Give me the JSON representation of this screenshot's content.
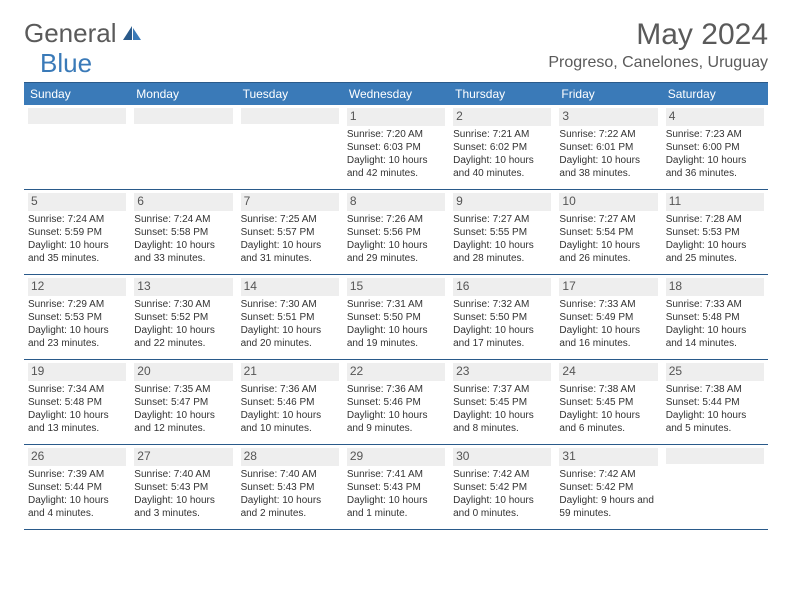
{
  "logo": {
    "part1": "General",
    "part2": "Blue"
  },
  "title": "May 2024",
  "location": "Progreso, Canelones, Uruguay",
  "colors": {
    "header_bg": "#3a7ab8",
    "border": "#2a5a8a",
    "daynum_bg": "#eeeeee",
    "text": "#333333",
    "logo_gray": "#5a5a5a",
    "logo_blue": "#3a7ab8"
  },
  "days_of_week": [
    "Sunday",
    "Monday",
    "Tuesday",
    "Wednesday",
    "Thursday",
    "Friday",
    "Saturday"
  ],
  "weeks": [
    [
      {
        "num": "",
        "sunrise": "",
        "sunset": "",
        "daylight": ""
      },
      {
        "num": "",
        "sunrise": "",
        "sunset": "",
        "daylight": ""
      },
      {
        "num": "",
        "sunrise": "",
        "sunset": "",
        "daylight": ""
      },
      {
        "num": "1",
        "sunrise": "Sunrise: 7:20 AM",
        "sunset": "Sunset: 6:03 PM",
        "daylight": "Daylight: 10 hours and 42 minutes."
      },
      {
        "num": "2",
        "sunrise": "Sunrise: 7:21 AM",
        "sunset": "Sunset: 6:02 PM",
        "daylight": "Daylight: 10 hours and 40 minutes."
      },
      {
        "num": "3",
        "sunrise": "Sunrise: 7:22 AM",
        "sunset": "Sunset: 6:01 PM",
        "daylight": "Daylight: 10 hours and 38 minutes."
      },
      {
        "num": "4",
        "sunrise": "Sunrise: 7:23 AM",
        "sunset": "Sunset: 6:00 PM",
        "daylight": "Daylight: 10 hours and 36 minutes."
      }
    ],
    [
      {
        "num": "5",
        "sunrise": "Sunrise: 7:24 AM",
        "sunset": "Sunset: 5:59 PM",
        "daylight": "Daylight: 10 hours and 35 minutes."
      },
      {
        "num": "6",
        "sunrise": "Sunrise: 7:24 AM",
        "sunset": "Sunset: 5:58 PM",
        "daylight": "Daylight: 10 hours and 33 minutes."
      },
      {
        "num": "7",
        "sunrise": "Sunrise: 7:25 AM",
        "sunset": "Sunset: 5:57 PM",
        "daylight": "Daylight: 10 hours and 31 minutes."
      },
      {
        "num": "8",
        "sunrise": "Sunrise: 7:26 AM",
        "sunset": "Sunset: 5:56 PM",
        "daylight": "Daylight: 10 hours and 29 minutes."
      },
      {
        "num": "9",
        "sunrise": "Sunrise: 7:27 AM",
        "sunset": "Sunset: 5:55 PM",
        "daylight": "Daylight: 10 hours and 28 minutes."
      },
      {
        "num": "10",
        "sunrise": "Sunrise: 7:27 AM",
        "sunset": "Sunset: 5:54 PM",
        "daylight": "Daylight: 10 hours and 26 minutes."
      },
      {
        "num": "11",
        "sunrise": "Sunrise: 7:28 AM",
        "sunset": "Sunset: 5:53 PM",
        "daylight": "Daylight: 10 hours and 25 minutes."
      }
    ],
    [
      {
        "num": "12",
        "sunrise": "Sunrise: 7:29 AM",
        "sunset": "Sunset: 5:53 PM",
        "daylight": "Daylight: 10 hours and 23 minutes."
      },
      {
        "num": "13",
        "sunrise": "Sunrise: 7:30 AM",
        "sunset": "Sunset: 5:52 PM",
        "daylight": "Daylight: 10 hours and 22 minutes."
      },
      {
        "num": "14",
        "sunrise": "Sunrise: 7:30 AM",
        "sunset": "Sunset: 5:51 PM",
        "daylight": "Daylight: 10 hours and 20 minutes."
      },
      {
        "num": "15",
        "sunrise": "Sunrise: 7:31 AM",
        "sunset": "Sunset: 5:50 PM",
        "daylight": "Daylight: 10 hours and 19 minutes."
      },
      {
        "num": "16",
        "sunrise": "Sunrise: 7:32 AM",
        "sunset": "Sunset: 5:50 PM",
        "daylight": "Daylight: 10 hours and 17 minutes."
      },
      {
        "num": "17",
        "sunrise": "Sunrise: 7:33 AM",
        "sunset": "Sunset: 5:49 PM",
        "daylight": "Daylight: 10 hours and 16 minutes."
      },
      {
        "num": "18",
        "sunrise": "Sunrise: 7:33 AM",
        "sunset": "Sunset: 5:48 PM",
        "daylight": "Daylight: 10 hours and 14 minutes."
      }
    ],
    [
      {
        "num": "19",
        "sunrise": "Sunrise: 7:34 AM",
        "sunset": "Sunset: 5:48 PM",
        "daylight": "Daylight: 10 hours and 13 minutes."
      },
      {
        "num": "20",
        "sunrise": "Sunrise: 7:35 AM",
        "sunset": "Sunset: 5:47 PM",
        "daylight": "Daylight: 10 hours and 12 minutes."
      },
      {
        "num": "21",
        "sunrise": "Sunrise: 7:36 AM",
        "sunset": "Sunset: 5:46 PM",
        "daylight": "Daylight: 10 hours and 10 minutes."
      },
      {
        "num": "22",
        "sunrise": "Sunrise: 7:36 AM",
        "sunset": "Sunset: 5:46 PM",
        "daylight": "Daylight: 10 hours and 9 minutes."
      },
      {
        "num": "23",
        "sunrise": "Sunrise: 7:37 AM",
        "sunset": "Sunset: 5:45 PM",
        "daylight": "Daylight: 10 hours and 8 minutes."
      },
      {
        "num": "24",
        "sunrise": "Sunrise: 7:38 AM",
        "sunset": "Sunset: 5:45 PM",
        "daylight": "Daylight: 10 hours and 6 minutes."
      },
      {
        "num": "25",
        "sunrise": "Sunrise: 7:38 AM",
        "sunset": "Sunset: 5:44 PM",
        "daylight": "Daylight: 10 hours and 5 minutes."
      }
    ],
    [
      {
        "num": "26",
        "sunrise": "Sunrise: 7:39 AM",
        "sunset": "Sunset: 5:44 PM",
        "daylight": "Daylight: 10 hours and 4 minutes."
      },
      {
        "num": "27",
        "sunrise": "Sunrise: 7:40 AM",
        "sunset": "Sunset: 5:43 PM",
        "daylight": "Daylight: 10 hours and 3 minutes."
      },
      {
        "num": "28",
        "sunrise": "Sunrise: 7:40 AM",
        "sunset": "Sunset: 5:43 PM",
        "daylight": "Daylight: 10 hours and 2 minutes."
      },
      {
        "num": "29",
        "sunrise": "Sunrise: 7:41 AM",
        "sunset": "Sunset: 5:43 PM",
        "daylight": "Daylight: 10 hours and 1 minute."
      },
      {
        "num": "30",
        "sunrise": "Sunrise: 7:42 AM",
        "sunset": "Sunset: 5:42 PM",
        "daylight": "Daylight: 10 hours and 0 minutes."
      },
      {
        "num": "31",
        "sunrise": "Sunrise: 7:42 AM",
        "sunset": "Sunset: 5:42 PM",
        "daylight": "Daylight: 9 hours and 59 minutes."
      },
      {
        "num": "",
        "sunrise": "",
        "sunset": "",
        "daylight": ""
      }
    ]
  ]
}
